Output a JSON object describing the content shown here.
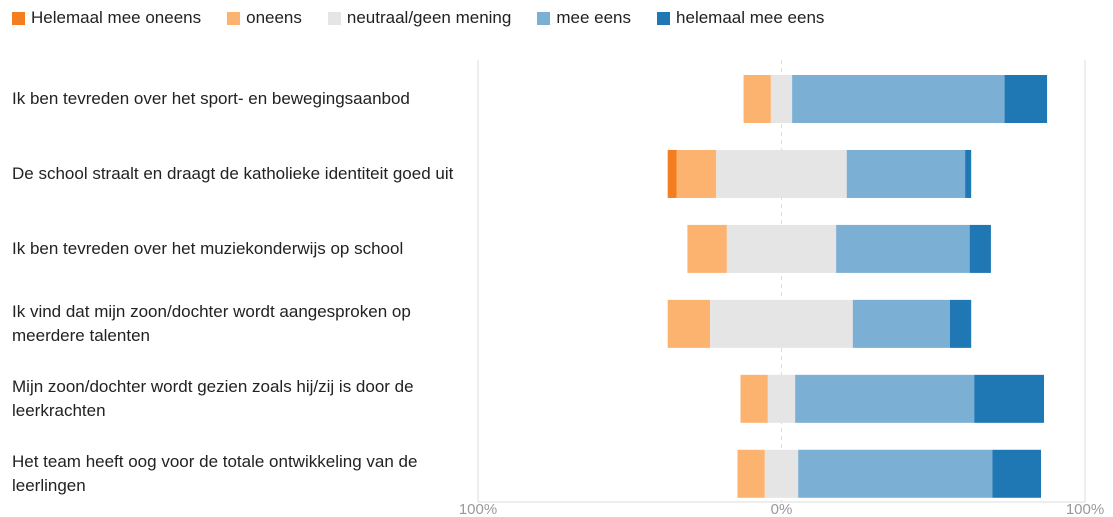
{
  "chart_data": {
    "type": "diverging-stacked-bar",
    "categories": [
      "Ik ben tevreden over het sport- en bewegingsaanbod",
      "De school straalt en draagt de katholieke identiteit goed uit",
      "Ik ben tevreden over het muziekonderwijs op school",
      "Ik vind dat mijn zoon/dochter wordt aangesproken op meerdere talenten",
      "Mijn zoon/dochter wordt gezien zoals hij/zij is door de leerkrachten",
      "Het team heeft oog voor de totale ontwikkeling van de leerlingen"
    ],
    "series": [
      {
        "name": "Helemaal mee oneens",
        "color": "#f47d20",
        "values": [
          0,
          3,
          0,
          0,
          0,
          0
        ],
        "side": "negative"
      },
      {
        "name": "oneens",
        "color": "#fbb36f",
        "values": [
          9,
          13,
          13,
          14,
          9,
          9
        ],
        "side": "negative"
      },
      {
        "name": "neutraal/geen mening",
        "color": "#e5e5e5",
        "values": [
          7,
          43,
          36,
          47,
          9,
          11
        ],
        "side": "neutral"
      },
      {
        "name": "mee eens",
        "color": "#7bafd4",
        "values": [
          70,
          39,
          44,
          32,
          59,
          64
        ],
        "side": "positive"
      },
      {
        "name": "helemaal mee eens",
        "color": "#1f77b4",
        "values": [
          14,
          2,
          7,
          7,
          23,
          16
        ],
        "side": "positive"
      }
    ],
    "xlim": [
      -100,
      100
    ],
    "xticks": [
      {
        "value": -100,
        "label": "100%"
      },
      {
        "value": 0,
        "label": "0%"
      },
      {
        "value": 100,
        "label": "100%"
      }
    ],
    "legend": "top"
  }
}
